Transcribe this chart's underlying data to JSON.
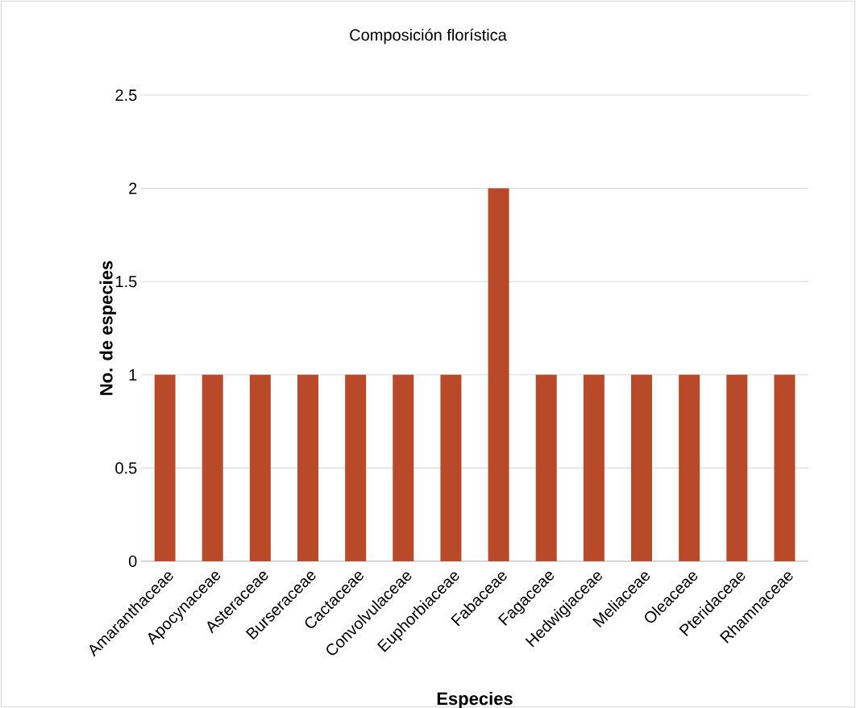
{
  "chart_data": {
    "type": "bar",
    "title": "Composición florística",
    "xlabel": "Especies",
    "ylabel": "No. de especies",
    "categories": [
      "Amaranthaceae",
      "Apocynaceae",
      "Asteraceae",
      "Burseraceae",
      "Cactaceae",
      "Convolvulaceae",
      "Euphorbiaceae",
      "Fabaceae",
      "Fagaceae",
      "Hedwigiaceae",
      "Meliaceae",
      "Oleaceae",
      "Pteridaceae",
      "Rhamnaceae"
    ],
    "values": [
      1,
      1,
      1,
      1,
      1,
      1,
      1,
      2,
      1,
      1,
      1,
      1,
      1,
      1
    ],
    "color": "#b94a29",
    "ylim": [
      0,
      2.5
    ],
    "yticks": [
      0,
      0.5,
      1,
      1.5,
      2,
      2.5
    ],
    "grid": "y"
  }
}
